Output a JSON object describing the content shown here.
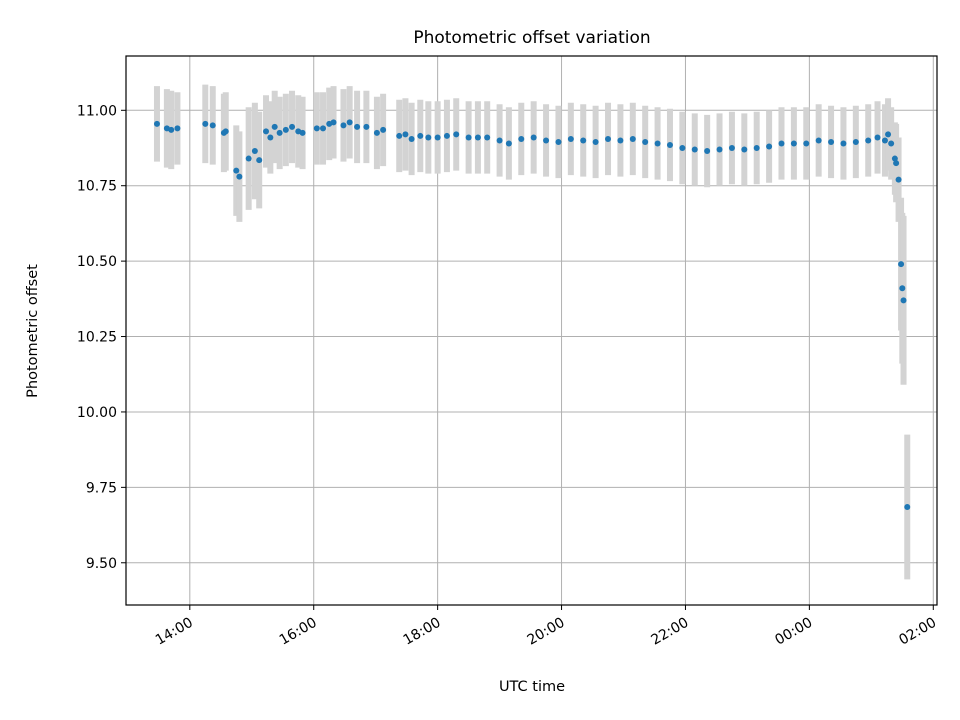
{
  "chart_data": {
    "type": "scatter",
    "title": "Photometric offset variation",
    "xlabel": "UTC time",
    "ylabel": "Photometric offset",
    "x_unit": "hours UTC (values above 24 are after midnight of the next day)",
    "xlim": [
      12.97,
      26.06
    ],
    "ylim": [
      9.36,
      11.18
    ],
    "xticks": [
      {
        "value": 14,
        "label": "14:00"
      },
      {
        "value": 16,
        "label": "16:00"
      },
      {
        "value": 18,
        "label": "18:00"
      },
      {
        "value": 20,
        "label": "20:00"
      },
      {
        "value": 22,
        "label": "22:00"
      },
      {
        "value": 24,
        "label": "00:00"
      },
      {
        "value": 26,
        "label": "02:00"
      }
    ],
    "yticks": [
      {
        "value": 9.5,
        "label": "9.50"
      },
      {
        "value": 9.75,
        "label": "9.75"
      },
      {
        "value": 10.0,
        "label": "10.00"
      },
      {
        "value": 10.25,
        "label": "10.25"
      },
      {
        "value": 10.5,
        "label": "10.50"
      },
      {
        "value": 10.75,
        "label": "10.75"
      },
      {
        "value": 11.0,
        "label": "11.00"
      }
    ],
    "grid": true,
    "colors": {
      "points": "#1f77b4",
      "errorbars": "#d3d3d3",
      "grid": "#b0b0b0"
    },
    "series": [
      {
        "points": [
          [
            13.47,
            10.955,
            0.125
          ],
          [
            13.63,
            10.94,
            0.13
          ],
          [
            13.7,
            10.935,
            0.13
          ],
          [
            13.8,
            10.94,
            0.12
          ],
          [
            14.25,
            10.955,
            0.13
          ],
          [
            14.37,
            10.95,
            0.13
          ],
          [
            14.55,
            10.925,
            0.13
          ],
          [
            14.58,
            10.93,
            0.13
          ],
          [
            14.75,
            10.8,
            0.15
          ],
          [
            14.8,
            10.78,
            0.15
          ],
          [
            14.95,
            10.84,
            0.17
          ],
          [
            15.05,
            10.865,
            0.16
          ],
          [
            15.12,
            10.835,
            0.16
          ],
          [
            15.23,
            10.93,
            0.12
          ],
          [
            15.3,
            10.91,
            0.12
          ],
          [
            15.37,
            10.945,
            0.12
          ],
          [
            15.45,
            10.925,
            0.12
          ],
          [
            15.55,
            10.935,
            0.12
          ],
          [
            15.65,
            10.945,
            0.12
          ],
          [
            15.75,
            10.93,
            0.12
          ],
          [
            15.82,
            10.925,
            0.12
          ],
          [
            16.05,
            10.94,
            0.12
          ],
          [
            16.15,
            10.94,
            0.12
          ],
          [
            16.25,
            10.955,
            0.12
          ],
          [
            16.32,
            10.96,
            0.12
          ],
          [
            16.48,
            10.95,
            0.12
          ],
          [
            16.58,
            10.96,
            0.12
          ],
          [
            16.7,
            10.945,
            0.12
          ],
          [
            16.85,
            10.945,
            0.12
          ],
          [
            17.02,
            10.925,
            0.12
          ],
          [
            17.12,
            10.935,
            0.12
          ],
          [
            17.38,
            10.915,
            0.12
          ],
          [
            17.48,
            10.92,
            0.12
          ],
          [
            17.58,
            10.905,
            0.12
          ],
          [
            17.72,
            10.915,
            0.12
          ],
          [
            17.85,
            10.91,
            0.12
          ],
          [
            18.0,
            10.91,
            0.12
          ],
          [
            18.15,
            10.915,
            0.12
          ],
          [
            18.3,
            10.92,
            0.12
          ],
          [
            18.5,
            10.91,
            0.12
          ],
          [
            18.65,
            10.91,
            0.12
          ],
          [
            18.8,
            10.91,
            0.12
          ],
          [
            19.0,
            10.9,
            0.12
          ],
          [
            19.15,
            10.89,
            0.12
          ],
          [
            19.35,
            10.905,
            0.12
          ],
          [
            19.55,
            10.91,
            0.12
          ],
          [
            19.75,
            10.9,
            0.12
          ],
          [
            19.95,
            10.895,
            0.12
          ],
          [
            20.15,
            10.905,
            0.12
          ],
          [
            20.35,
            10.9,
            0.12
          ],
          [
            20.55,
            10.895,
            0.12
          ],
          [
            20.75,
            10.905,
            0.12
          ],
          [
            20.95,
            10.9,
            0.12
          ],
          [
            21.15,
            10.905,
            0.12
          ],
          [
            21.35,
            10.895,
            0.12
          ],
          [
            21.55,
            10.89,
            0.12
          ],
          [
            21.75,
            10.885,
            0.12
          ],
          [
            21.95,
            10.875,
            0.12
          ],
          [
            22.15,
            10.87,
            0.12
          ],
          [
            22.35,
            10.865,
            0.12
          ],
          [
            22.55,
            10.87,
            0.12
          ],
          [
            22.75,
            10.875,
            0.12
          ],
          [
            22.95,
            10.87,
            0.12
          ],
          [
            23.15,
            10.875,
            0.12
          ],
          [
            23.35,
            10.88,
            0.12
          ],
          [
            23.55,
            10.89,
            0.12
          ],
          [
            23.75,
            10.89,
            0.12
          ],
          [
            23.95,
            10.89,
            0.12
          ],
          [
            24.15,
            10.9,
            0.12
          ],
          [
            24.35,
            10.895,
            0.12
          ],
          [
            24.55,
            10.89,
            0.12
          ],
          [
            24.75,
            10.895,
            0.12
          ],
          [
            24.95,
            10.9,
            0.12
          ],
          [
            25.1,
            10.91,
            0.12
          ],
          [
            25.22,
            10.9,
            0.12
          ],
          [
            25.27,
            10.92,
            0.12
          ],
          [
            25.32,
            10.89,
            0.12
          ],
          [
            25.38,
            10.84,
            0.12
          ],
          [
            25.4,
            10.825,
            0.13
          ],
          [
            25.44,
            10.77,
            0.14
          ],
          [
            25.48,
            10.49,
            0.22
          ],
          [
            25.5,
            10.41,
            0.25
          ],
          [
            25.52,
            10.37,
            0.28
          ],
          [
            25.58,
            9.685,
            0.24
          ]
        ]
      }
    ]
  }
}
